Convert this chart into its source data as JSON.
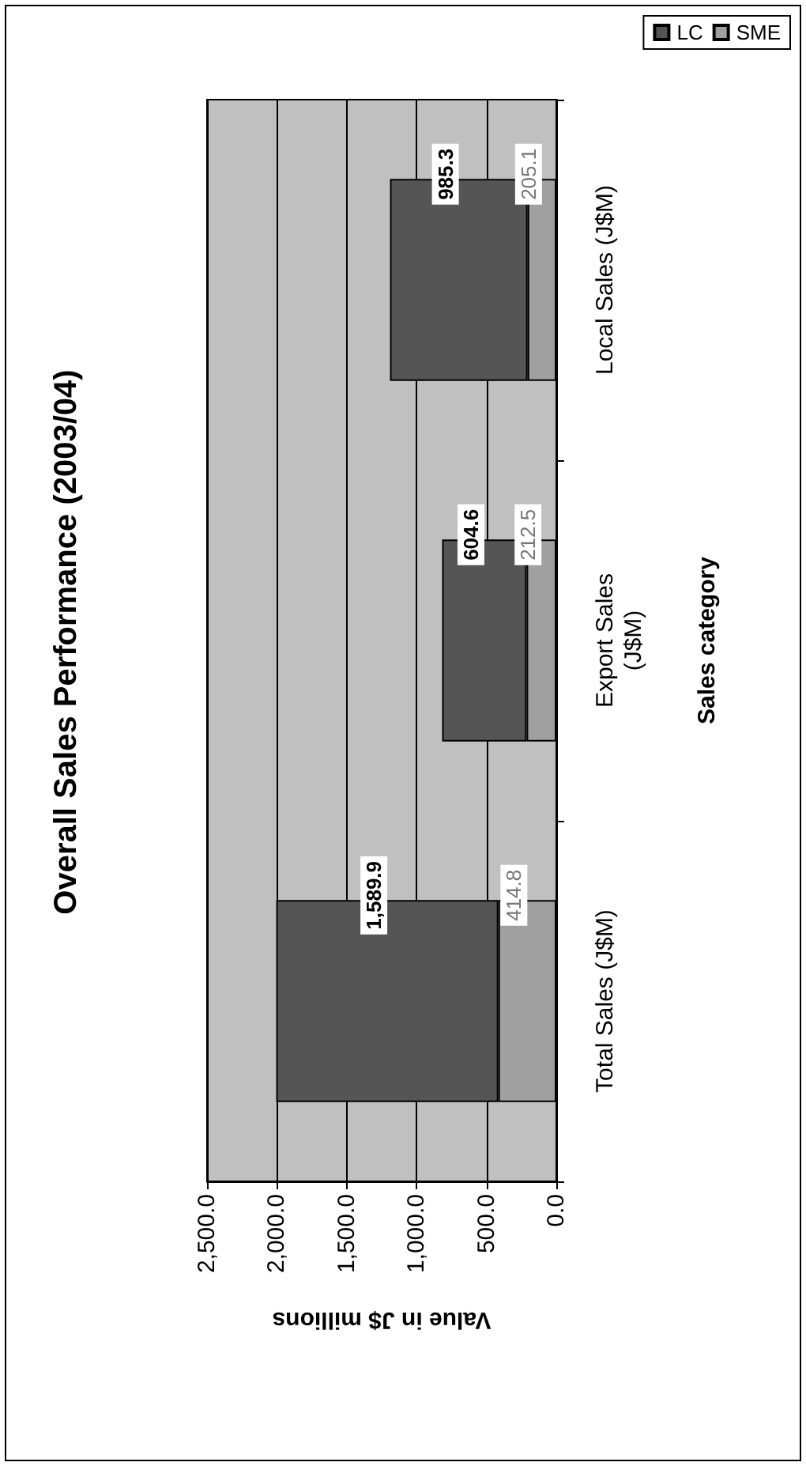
{
  "chart_data": {
    "type": "bar",
    "stacked": true,
    "orientation": "horizontal",
    "title": "Overall Sales Performance (2003/04)",
    "xlabel": "Value in J$ millions",
    "ylabel": "Sales category",
    "categories": [
      "Local Sales (J$M)",
      "Export Sales\n(J$M)",
      "Total Sales (J$M)"
    ],
    "series": [
      {
        "name": "SME",
        "color": "#a0a0a0",
        "values": [
          205.1,
          212.5,
          414.8
        ],
        "value_labels": [
          "205.1",
          "212.5",
          "414.8"
        ]
      },
      {
        "name": "LC",
        "color": "#555555",
        "values": [
          985.3,
          604.6,
          1589.9
        ],
        "value_labels": [
          "985.3",
          "604.6",
          "1,589.9"
        ]
      }
    ],
    "xlim": [
      2500,
      0
    ],
    "xticks": [
      {
        "value": 2500,
        "label": "2,500.0"
      },
      {
        "value": 2000,
        "label": "2,000.0"
      },
      {
        "value": 1500,
        "label": "1,500.0"
      },
      {
        "value": 1000,
        "label": "1,000.0"
      },
      {
        "value": 500,
        "label": "500.0"
      },
      {
        "value": 0,
        "label": "0.0"
      }
    ],
    "grid": "x",
    "legend": "top right"
  }
}
